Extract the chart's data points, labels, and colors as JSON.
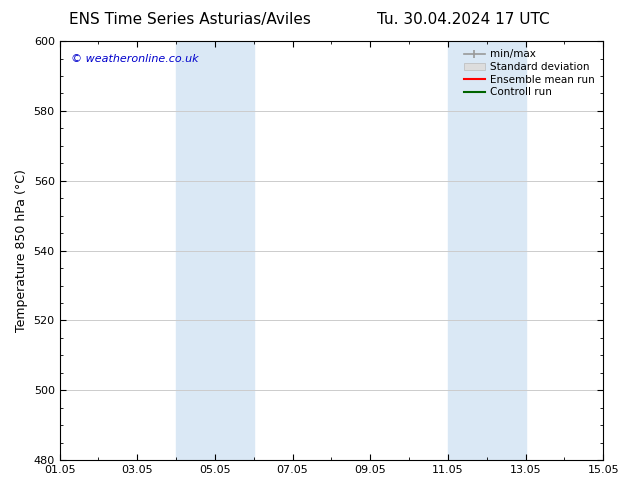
{
  "title_left": "ENS Time Series Asturias/Aviles",
  "title_right": "Tu. 30.04.2024 17 UTC",
  "ylabel": "Temperature 850 hPa (°C)",
  "ylim": [
    480,
    600
  ],
  "yticks": [
    480,
    500,
    520,
    540,
    560,
    580,
    600
  ],
  "xlim": [
    0,
    14
  ],
  "xtick_labels": [
    "01.05",
    "03.05",
    "05.05",
    "07.05",
    "09.05",
    "11.05",
    "13.05",
    "15.05"
  ],
  "xtick_positions": [
    0,
    2,
    4,
    6,
    8,
    10,
    12,
    14
  ],
  "shaded_bands": [
    {
      "x_start": 3.0,
      "x_end": 5.0,
      "color": "#dae8f5"
    },
    {
      "x_start": 10.0,
      "x_end": 12.0,
      "color": "#dae8f5"
    }
  ],
  "legend_entries": [
    {
      "label": "min/max",
      "color": "#aaaaaa",
      "style": "minmax"
    },
    {
      "label": "Standard deviation",
      "color": "#cccccc",
      "style": "stddev"
    },
    {
      "label": "Ensemble mean run",
      "color": "#ff0000",
      "style": "line"
    },
    {
      "label": "Controll run",
      "color": "#008000",
      "style": "line"
    }
  ],
  "watermark_text": "© weatheronline.co.uk",
  "watermark_color": "#0000cc",
  "background_color": "#ffffff",
  "plot_bg_color": "#ffffff",
  "grid_color": "#cccccc",
  "title_fontsize": 11,
  "axis_fontsize": 9,
  "tick_fontsize": 8,
  "legend_fontsize": 7.5
}
